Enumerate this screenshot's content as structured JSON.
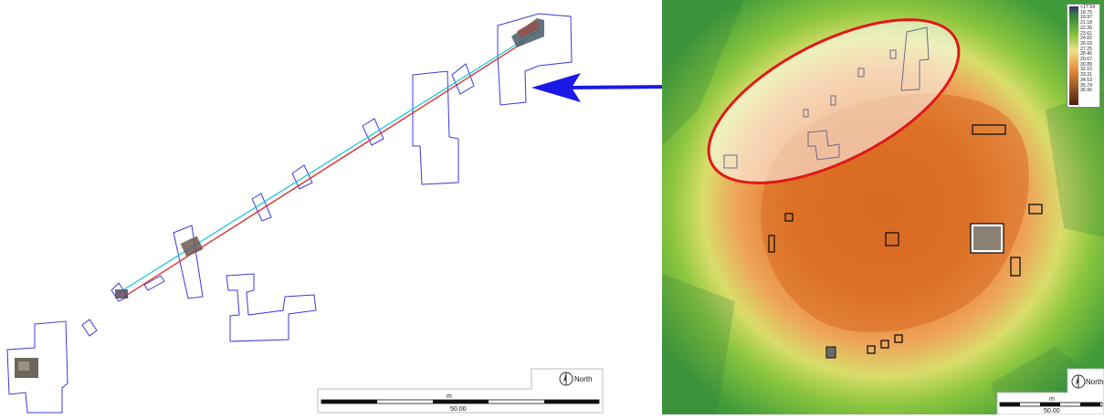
{
  "left_map": {
    "scale_unit": "m",
    "scale_value": "50.00",
    "north_label": "North"
  },
  "right_map": {
    "scale_unit": "m",
    "scale_value": "50.00",
    "north_label": "North",
    "legend_values": [
      "<17.54",
      "18.75",
      "19.97",
      "21.18",
      "22.39",
      "23.61",
      "24.82",
      "26.03",
      "27.25",
      "28.46",
      "29.67",
      "30.89",
      "32.10",
      "33.31",
      "34.53",
      "35.74",
      "36.95"
    ],
    "legend_colors": [
      "#3b2a6e",
      "#2e7d3c",
      "#3f9a3a",
      "#5fb23a",
      "#8cc63f",
      "#b8d84a",
      "#e0e36a",
      "#f3e08a",
      "#f2c07a",
      "#eda55a",
      "#e58a3a",
      "#d9742a",
      "#c55f1f",
      "#a94a18",
      "#8a3a14",
      "#6e2e12",
      "#4a2010"
    ]
  },
  "arrow": {
    "color": "#1a1ae6"
  }
}
